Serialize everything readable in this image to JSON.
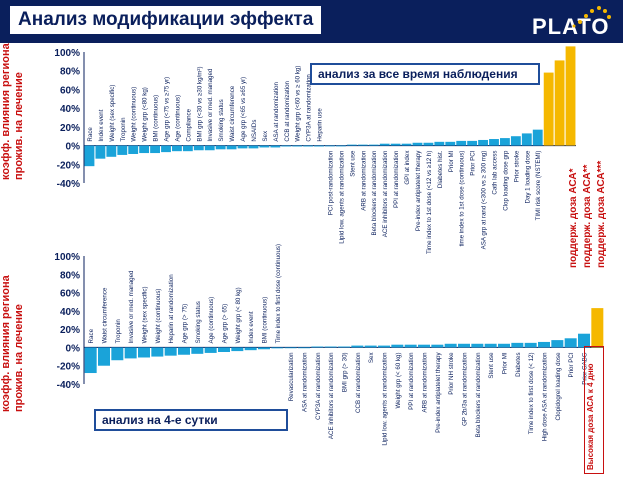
{
  "header": {
    "title": "Анализ модификации эффекта",
    "logo": "PLATO"
  },
  "colors": {
    "navy": "#0a1f5c",
    "bar_blue": "#1aa3d9",
    "bar_gold": "#f5b800",
    "label_red": "#c81010"
  },
  "top_panel": {
    "ylabel": "коэфф. влияния региона проживания на лечение",
    "ylabel_line1": "коэфф. влияния региона",
    "ylabel_line2": "прожив. на лечение",
    "callout": "анализ за все время наблюдения",
    "legend": [
      "поддерж. доза АСА*",
      "поддерж. доза АСА**",
      "поддерж. доза АСА***"
    ]
  },
  "bottom_panel": {
    "ylabel_line1": "коэфф. влияния региона",
    "ylabel_line2": "прожив. на лечение",
    "callout": "анализ на 4-е сутки",
    "legend": "Высокая доза АСА к 4 дню"
  },
  "chart_data": [
    {
      "type": "bar",
      "yticks": [
        "100%",
        "80%",
        "60%",
        "40%",
        "20%",
        "0%",
        "-20%",
        "-40%"
      ],
      "ylim": [
        -40,
        100
      ],
      "categories": [
        "Race",
        "Index event",
        "Weight (sex specific)",
        "Troponin",
        "Weight (continuous)",
        "Weight grp (<80 kg)",
        "BMI (continuous)",
        "Age grp (<75 vs ≥75 yr)",
        "Age (continuous)",
        "Compliance",
        "BMI grp (<30 vs ≥30 kg/m²)",
        "Invasive or med. managed",
        "Smoking status",
        "Waist circumference",
        "Age grp (<65 vs ≥65 yr)",
        "NSAIDs",
        "Sex",
        "ASA at randomization",
        "CCB at randomization",
        "Weight grp (<60 vs ≥ 60 kg)",
        "CYP3A at randomization",
        "Heparin use",
        "PCI post-randomization",
        "Lipid low. agents at randomization",
        "Stent use",
        "ARB at randomization",
        "Beta blockers at randomization",
        "ACE inhibitors at randomization",
        "PPI at randomization",
        "GPI at index",
        "Pre-index antiplatelet therapy",
        "Time index to 1st dose (<12 vs ≥12 h)",
        "Diabetes hist.",
        "Prior MI",
        "time index to 1st dose (continuous)",
        "Prior PCI",
        "ASA grp at rand (<300 vs ≥ 300 mg)",
        "Cath lab access",
        "Clop loading dose grp",
        "Prior stroke",
        "Day 1 loading dose",
        "TIMI risk score (NSTEMI)",
        "поддерж. доза АСА*",
        "поддерж. доза АСА**",
        "поддерж. доза АСА***"
      ],
      "values": [
        -22,
        -14,
        -12,
        -10,
        -9,
        -8,
        -8,
        -7,
        -6,
        -6,
        -5,
        -5,
        -4,
        -4,
        -3,
        -3,
        -2,
        -2,
        -1,
        -1,
        -1,
        -1,
        0,
        0,
        1,
        1,
        1,
        2,
        2,
        2,
        3,
        3,
        4,
        4,
        5,
        5,
        6,
        7,
        8,
        10,
        13,
        17,
        78,
        91,
        106
      ],
      "highlight": [
        "поддерж. доза АСА*",
        "поддерж. доза АСА**",
        "поддерж. доза АСА***"
      ]
    },
    {
      "type": "bar",
      "yticks": [
        "100%",
        "80%",
        "60%",
        "40%",
        "20%",
        "0%",
        "-20%",
        "-40%"
      ],
      "ylim": [
        -40,
        100
      ],
      "categories": [
        "Race",
        "Waist circumference",
        "Troponin",
        "Invasive or med. managed",
        "Weight (sex specific)",
        "Weight (continuous)",
        "Heparin at randomization",
        "Age grp (> 75)",
        "Smoking status",
        "Age (continuous)",
        "Age grp (> 65)",
        "Weight grp (< 80 kg)",
        "Index event",
        "BMI (continuous)",
        "Time index to first dose (continuous)",
        "Revascularization",
        "ASA at randomization",
        "CYP3A at randomization",
        "ACE inhibitors at randomization",
        "BMI grp (> 30)",
        "CCB at randomization",
        "Sex",
        "Lipid low. agents at randomization",
        "Weight grp (< 60 kg)",
        "PPI at randomization",
        "ARB at randomization",
        "Pre-index antiplatelet therapy",
        "Prior NH stroke",
        "GP 2b/3a at randomization",
        "Beta blockers at randomization",
        "Stent use",
        "Prior MI",
        "Diabetes",
        "Time index to first dose (< 12)",
        "High dose ASA at randomization",
        "Clopidogrel loading dose",
        "Prior PCI",
        "Prior CABG",
        "Высокая доза АСА к 4 дню"
      ],
      "values": [
        -28,
        -20,
        -14,
        -12,
        -11,
        -10,
        -9,
        -8,
        -7,
        -6,
        -5,
        -4,
        -3,
        -2,
        -1,
        0,
        0,
        1,
        1,
        1,
        2,
        2,
        2,
        3,
        3,
        3,
        3,
        4,
        4,
        4,
        4,
        4,
        5,
        5,
        6,
        8,
        10,
        15,
        43
      ],
      "highlight": [
        "Высокая доза АСА к 4 дню"
      ]
    }
  ]
}
